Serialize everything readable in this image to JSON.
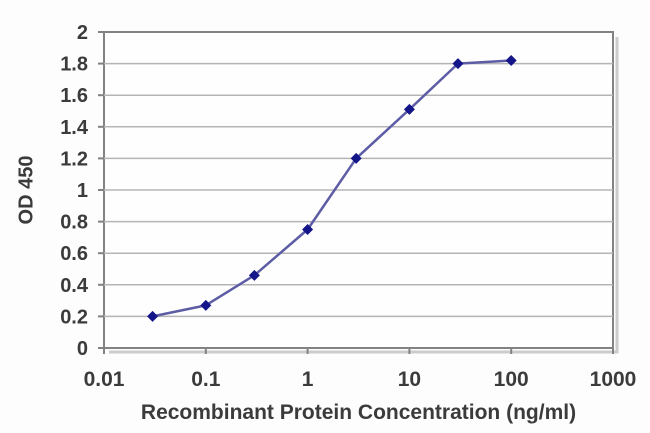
{
  "chart_data": {
    "type": "line",
    "x_scale": "log",
    "marker": "diamond",
    "x": [
      0.03,
      0.1,
      0.3,
      1,
      3,
      10,
      30,
      100
    ],
    "y": [
      0.2,
      0.27,
      0.46,
      0.75,
      1.2,
      1.51,
      1.8,
      1.82
    ],
    "xlabel": "Recombinant Protein Concentration (ng/ml)",
    "ylabel": "OD 450",
    "xlim": [
      0.01,
      1000
    ],
    "ylim": [
      0,
      2
    ],
    "x_tick_labels": [
      "0.01",
      "0.1",
      "1",
      "10",
      "100",
      "1000"
    ],
    "y_tick_labels": [
      "0",
      "0.2",
      "0.4",
      "0.6",
      "0.8",
      "1",
      "1.2",
      "1.4",
      "1.6",
      "1.8",
      "2"
    ],
    "grid": "horizontal",
    "legend": "none",
    "colors": {
      "line": "#5d5da6",
      "marker": "#15158a",
      "grid": "#b5b5b5",
      "axis": "#828282",
      "shadow": "#cccccc",
      "text": "#3b3b3b",
      "plot_bg": "#fefefe",
      "figure_bg": "#fdfdfd"
    }
  }
}
